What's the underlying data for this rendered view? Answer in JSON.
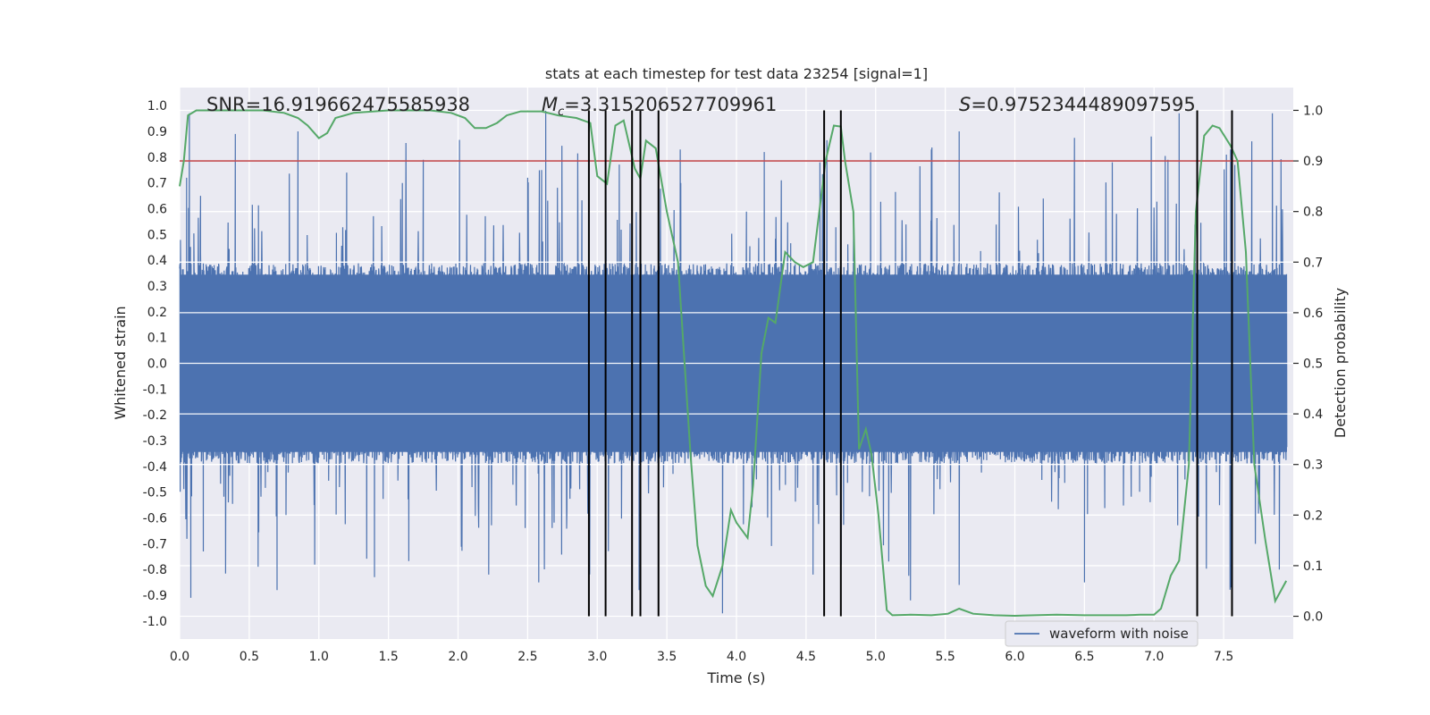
{
  "chart_data": {
    "type": "line",
    "title": "stats at each timestep for test data 23254 [signal=1]",
    "xlabel": "Time (s)",
    "ylabel_left": "Whitened strain",
    "ylabel_right": "Detection probability",
    "xlim": [
      0.0,
      8.0
    ],
    "ylim_left": [
      -1.07,
      1.07
    ],
    "ylim_right": [
      -0.045,
      1.045
    ],
    "x_ticks": [
      "0.0",
      "0.5",
      "1.0",
      "1.5",
      "2.0",
      "2.5",
      "3.0",
      "3.5",
      "4.0",
      "4.5",
      "5.0",
      "5.5",
      "6.0",
      "6.5",
      "7.0",
      "7.5"
    ],
    "y_ticks_left": [
      "1.0",
      "0.9",
      "0.8",
      "0.7",
      "0.6",
      "0.5",
      "0.4",
      "0.3",
      "0.2",
      "0.1",
      "0.0",
      "-0.1",
      "-0.2",
      "-0.3",
      "-0.4",
      "-0.5",
      "-0.6",
      "-0.7",
      "-0.8",
      "-0.9",
      "-1.0"
    ],
    "y_ticks_right": [
      "1.0",
      "0.9",
      "0.8",
      "0.7",
      "0.6",
      "0.5",
      "0.4",
      "0.3",
      "0.2",
      "0.1",
      "0.0"
    ],
    "annotations": {
      "snr": "SNR=16.919662475585938",
      "mc_symbol": "M",
      "mc_sub": "c",
      "mc_value": "=3.315206527709961",
      "s_symbol": "S",
      "s_value": "=0.9752344489097595"
    },
    "legend": {
      "label": "waveform with noise",
      "loc": "lower-right"
    },
    "threshold": {
      "value": 0.9,
      "axis": "right",
      "color": "#c44e52"
    },
    "colors": {
      "waveform": "#4c72b0",
      "probability": "#55a868",
      "marker": "#000000",
      "threshold": "#c44e52",
      "plot_bg": "#eaeaf2",
      "grid": "#ffffff"
    },
    "waveform_envelope": {
      "core_amplitude": 0.37,
      "spike_max": 1.0,
      "dt": 0.002
    },
    "peaks_positive": [
      {
        "t": 0.05,
        "v": 0.72
      },
      {
        "t": 0.07,
        "v": 0.97
      },
      {
        "t": 0.15,
        "v": 0.65
      },
      {
        "t": 0.4,
        "v": 0.89
      },
      {
        "t": 0.85,
        "v": 0.9
      },
      {
        "t": 1.2,
        "v": 0.74
      },
      {
        "t": 1.6,
        "v": 0.7
      },
      {
        "t": 1.75,
        "v": 0.79
      },
      {
        "t": 2.5,
        "v": 0.72
      },
      {
        "t": 2.6,
        "v": 0.75
      },
      {
        "t": 2.63,
        "v": 0.98
      },
      {
        "t": 3.6,
        "v": 0.7
      },
      {
        "t": 4.2,
        "v": 0.82
      },
      {
        "t": 4.6,
        "v": 0.78
      },
      {
        "t": 5.4,
        "v": 0.83
      },
      {
        "t": 5.6,
        "v": 0.9
      },
      {
        "t": 6.7,
        "v": 0.78
      },
      {
        "t": 6.98,
        "v": 0.88
      },
      {
        "t": 7.1,
        "v": 0.79
      },
      {
        "t": 7.18,
        "v": 0.97
      },
      {
        "t": 7.52,
        "v": 0.81
      },
      {
        "t": 7.55,
        "v": 0.83
      },
      {
        "t": 7.58,
        "v": 0.77
      },
      {
        "t": 7.85,
        "v": 0.97
      }
    ],
    "peaks_negative": [
      {
        "t": 0.08,
        "v": -0.91
      },
      {
        "t": 0.17,
        "v": -0.73
      },
      {
        "t": 0.7,
        "v": -0.88
      },
      {
        "t": 1.4,
        "v": -0.83
      },
      {
        "t": 2.22,
        "v": -0.82
      },
      {
        "t": 2.58,
        "v": -0.85
      },
      {
        "t": 3.3,
        "v": -0.88
      },
      {
        "t": 3.9,
        "v": -0.97
      },
      {
        "t": 4.55,
        "v": -0.82
      },
      {
        "t": 5.25,
        "v": -0.92
      },
      {
        "t": 5.6,
        "v": -0.86
      },
      {
        "t": 6.5,
        "v": -0.85
      },
      {
        "t": 7.55,
        "v": -0.87
      },
      {
        "t": 7.9,
        "v": -0.8
      }
    ],
    "probability": [
      {
        "x": 0.0,
        "y": 0.85
      },
      {
        "x": 0.03,
        "y": 0.9
      },
      {
        "x": 0.06,
        "y": 0.99
      },
      {
        "x": 0.12,
        "y": 1.0
      },
      {
        "x": 0.4,
        "y": 1.0
      },
      {
        "x": 0.6,
        "y": 1.0
      },
      {
        "x": 0.75,
        "y": 0.995
      },
      {
        "x": 0.85,
        "y": 0.985
      },
      {
        "x": 0.92,
        "y": 0.97
      },
      {
        "x": 1.0,
        "y": 0.945
      },
      {
        "x": 1.06,
        "y": 0.955
      },
      {
        "x": 1.12,
        "y": 0.985
      },
      {
        "x": 1.25,
        "y": 0.995
      },
      {
        "x": 1.5,
        "y": 1.0
      },
      {
        "x": 1.8,
        "y": 1.0
      },
      {
        "x": 1.95,
        "y": 0.995
      },
      {
        "x": 2.05,
        "y": 0.985
      },
      {
        "x": 2.12,
        "y": 0.965
      },
      {
        "x": 2.2,
        "y": 0.965
      },
      {
        "x": 2.28,
        "y": 0.975
      },
      {
        "x": 2.35,
        "y": 0.99
      },
      {
        "x": 2.45,
        "y": 0.998
      },
      {
        "x": 2.6,
        "y": 0.998
      },
      {
        "x": 2.72,
        "y": 0.99
      },
      {
        "x": 2.85,
        "y": 0.985
      },
      {
        "x": 2.95,
        "y": 0.975
      },
      {
        "x": 3.0,
        "y": 0.87
      },
      {
        "x": 3.07,
        "y": 0.855
      },
      {
        "x": 3.13,
        "y": 0.97
      },
      {
        "x": 3.19,
        "y": 0.98
      },
      {
        "x": 3.27,
        "y": 0.885
      },
      {
        "x": 3.31,
        "y": 0.865
      },
      {
        "x": 3.35,
        "y": 0.94
      },
      {
        "x": 3.42,
        "y": 0.925
      },
      {
        "x": 3.5,
        "y": 0.8
      },
      {
        "x": 3.58,
        "y": 0.7
      },
      {
        "x": 3.67,
        "y": 0.32
      },
      {
        "x": 3.72,
        "y": 0.14
      },
      {
        "x": 3.78,
        "y": 0.06
      },
      {
        "x": 3.83,
        "y": 0.04
      },
      {
        "x": 3.9,
        "y": 0.1
      },
      {
        "x": 3.96,
        "y": 0.21
      },
      {
        "x": 4.0,
        "y": 0.185
      },
      {
        "x": 4.08,
        "y": 0.155
      },
      {
        "x": 4.12,
        "y": 0.26
      },
      {
        "x": 4.18,
        "y": 0.52
      },
      {
        "x": 4.23,
        "y": 0.59
      },
      {
        "x": 4.28,
        "y": 0.58
      },
      {
        "x": 4.35,
        "y": 0.72
      },
      {
        "x": 4.42,
        "y": 0.7
      },
      {
        "x": 4.48,
        "y": 0.69
      },
      {
        "x": 4.55,
        "y": 0.7
      },
      {
        "x": 4.6,
        "y": 0.81
      },
      {
        "x": 4.64,
        "y": 0.9
      },
      {
        "x": 4.7,
        "y": 0.97
      },
      {
        "x": 4.75,
        "y": 0.968
      },
      {
        "x": 4.78,
        "y": 0.9
      },
      {
        "x": 4.84,
        "y": 0.8
      },
      {
        "x": 4.88,
        "y": 0.33
      },
      {
        "x": 4.93,
        "y": 0.37
      },
      {
        "x": 4.97,
        "y": 0.32
      },
      {
        "x": 5.02,
        "y": 0.2
      },
      {
        "x": 5.08,
        "y": 0.012
      },
      {
        "x": 5.12,
        "y": 0.002
      },
      {
        "x": 5.25,
        "y": 0.003
      },
      {
        "x": 5.4,
        "y": 0.002
      },
      {
        "x": 5.52,
        "y": 0.005
      },
      {
        "x": 5.6,
        "y": 0.015
      },
      {
        "x": 5.7,
        "y": 0.005
      },
      {
        "x": 5.85,
        "y": 0.002
      },
      {
        "x": 6.0,
        "y": 0.001
      },
      {
        "x": 6.3,
        "y": 0.003
      },
      {
        "x": 6.5,
        "y": 0.002
      },
      {
        "x": 6.8,
        "y": 0.002
      },
      {
        "x": 6.9,
        "y": 0.003
      },
      {
        "x": 7.0,
        "y": 0.003
      },
      {
        "x": 7.05,
        "y": 0.015
      },
      {
        "x": 7.12,
        "y": 0.08
      },
      {
        "x": 7.18,
        "y": 0.11
      },
      {
        "x": 7.25,
        "y": 0.3
      },
      {
        "x": 7.3,
        "y": 0.8
      },
      {
        "x": 7.36,
        "y": 0.95
      },
      {
        "x": 7.42,
        "y": 0.97
      },
      {
        "x": 7.47,
        "y": 0.965
      },
      {
        "x": 7.55,
        "y": 0.93
      },
      {
        "x": 7.6,
        "y": 0.9
      },
      {
        "x": 7.66,
        "y": 0.72
      },
      {
        "x": 7.72,
        "y": 0.3
      },
      {
        "x": 7.8,
        "y": 0.15
      },
      {
        "x": 7.87,
        "y": 0.03
      },
      {
        "x": 7.95,
        "y": 0.07
      }
    ],
    "detection_times": [
      2.94,
      3.06,
      3.25,
      3.31,
      3.44,
      4.63,
      4.75,
      7.31,
      7.56
    ],
    "detection_marker_range": [
      0.0,
      1.0
    ]
  }
}
